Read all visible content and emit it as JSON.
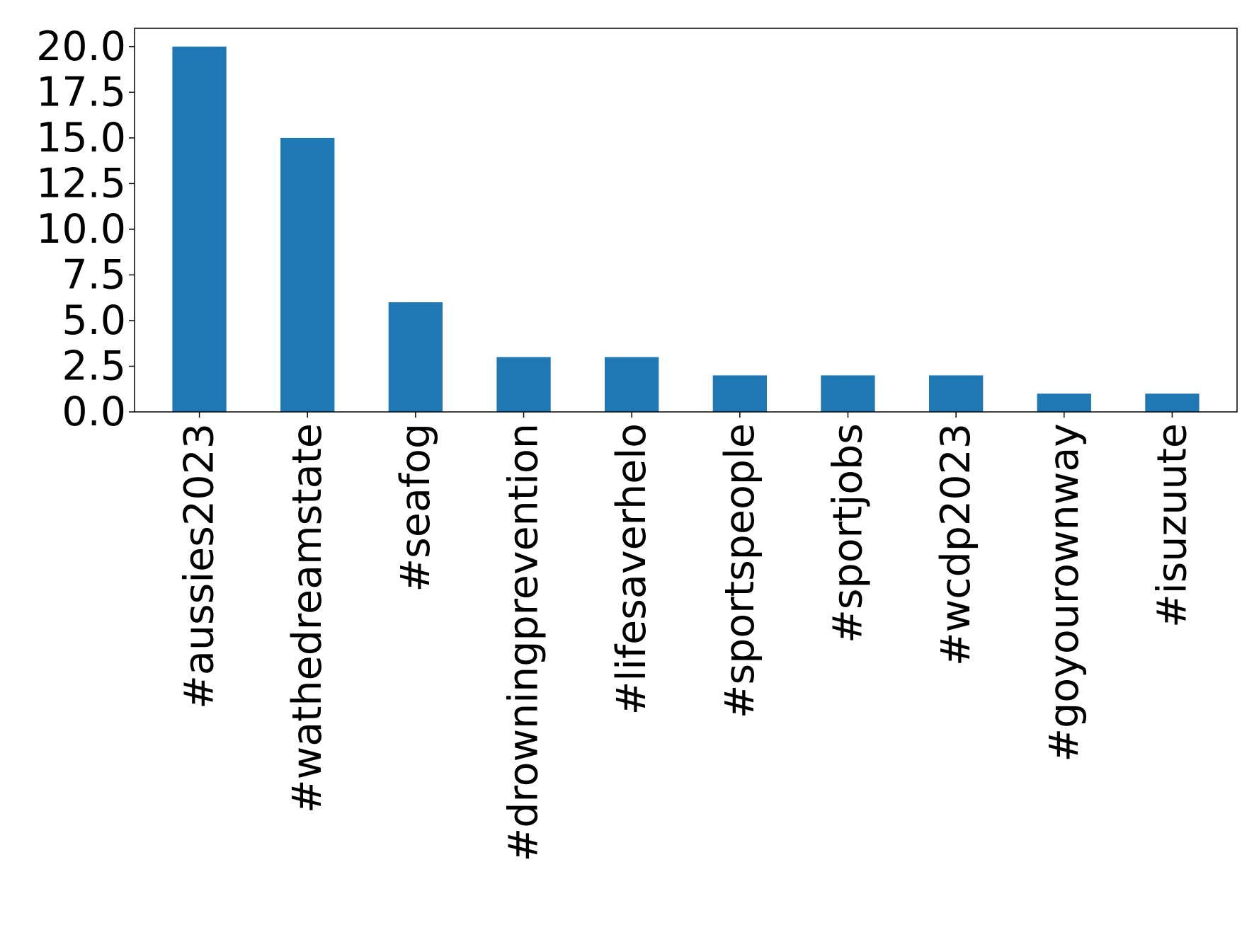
{
  "chart_data": {
    "type": "bar",
    "title": "",
    "xlabel": "",
    "ylabel": "",
    "categories": [
      "#aussies2023",
      "#wathedreamstate",
      "#seafog",
      "#drowningprevention",
      "#lifesaverhelo",
      "#sportspeople",
      "#sportjobs",
      "#wcdp2023",
      "#goyourownway",
      "#isuzuute"
    ],
    "values": [
      20,
      15,
      6,
      3,
      3,
      2,
      2,
      2,
      1,
      1
    ],
    "ylim": [
      0,
      21
    ],
    "yticks": [
      0,
      2.5,
      5,
      7.5,
      10,
      12.5,
      15,
      17.5,
      20
    ],
    "ytick_labels": [
      "0.0",
      "2.5",
      "5.0",
      "7.5",
      "10.0",
      "12.5",
      "15.0",
      "17.5",
      "20.0"
    ],
    "bar_color": "#1f77b4",
    "grid": false,
    "legend": "none"
  }
}
